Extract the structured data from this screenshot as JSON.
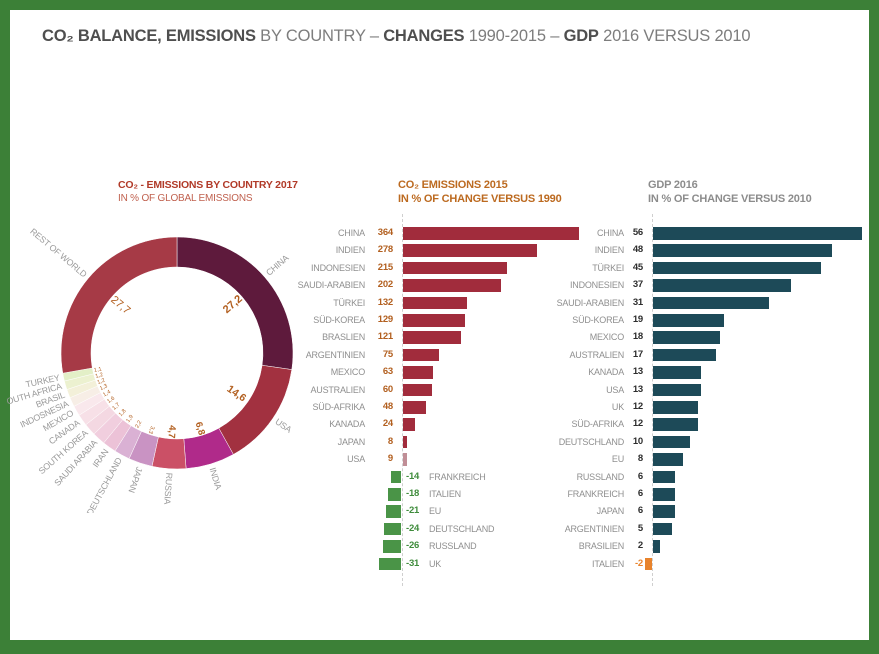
{
  "frame": {
    "border_color": "#3c8037",
    "background": "#ffffff"
  },
  "header": {
    "bold_color": "#4f4f4f",
    "regular_color": "#7d7d7d",
    "segments": [
      {
        "text": "CO₂ BALANCE, EMISSIONS",
        "bold": true
      },
      {
        "text": " BY COUNTRY – ",
        "bold": false
      },
      {
        "text": "CHANGES",
        "bold": true
      },
      {
        "text": " 1990-2015 – ",
        "bold": false
      },
      {
        "text": "GDP",
        "bold": true
      },
      {
        "text": " 2016 VERSUS 2010",
        "bold": false
      }
    ]
  },
  "chart_data": [
    {
      "type": "pie",
      "variant": "donut",
      "title": "CO₂ - EMISSIONS BY COUNTRY 2017",
      "subtitle": "IN % OF GLOBAL EMISSIONS",
      "title_color": "#b13a28",
      "subtitle_color": "#c0614f",
      "label_color": "#9a9a9a",
      "value_color": "#b25f1f",
      "segments": [
        {
          "label": "CHINA",
          "value": 27.2,
          "display": "27,2",
          "color": "#5e1a3c",
          "tier": "xl",
          "bold": true
        },
        {
          "label": "USA",
          "value": 14.6,
          "display": "14,6",
          "color": "#a23140",
          "tier": "lg",
          "bold": true
        },
        {
          "label": "INDIA",
          "value": 6.8,
          "display": "6,8",
          "color": "#b02a8a",
          "tier": "md",
          "bold": true
        },
        {
          "label": "RUSSIA",
          "value": 4.7,
          "display": "4,7",
          "color": "#cb5066",
          "tier": "md",
          "bold": true
        },
        {
          "label": "JAPAN",
          "value": 3.3,
          "display": "3,3",
          "color": "#c993c3",
          "tier": "sm",
          "bold": false
        },
        {
          "label": "DEUTSCHLAND",
          "value": 2.2,
          "display": "2,2",
          "color": "#dab1d4",
          "tier": "sm",
          "bold": false
        },
        {
          "label": "IRAN",
          "value": 1.9,
          "display": "1,9",
          "color": "#ecc2d7",
          "tier": "sm",
          "bold": false
        },
        {
          "label": "SAUDI ARABIA",
          "value": 1.8,
          "display": "1,8",
          "color": "#f1cede",
          "tier": "sm",
          "bold": false
        },
        {
          "label": "SOUTH KOREA",
          "value": 1.7,
          "display": "1,7",
          "color": "#f4d8e2",
          "tier": "sm",
          "bold": false
        },
        {
          "label": "CANADA",
          "value": 1.6,
          "display": "1,6",
          "color": "#f7e0e7",
          "tier": "sm",
          "bold": false
        },
        {
          "label": "MEXICO",
          "value": 1.4,
          "display": "1,4",
          "color": "#f9e8ec",
          "tier": "sm",
          "bold": false
        },
        {
          "label": "INDOSNESIA",
          "value": 1.3,
          "display": "1,3",
          "color": "#f7eee6",
          "tier": "sm",
          "bold": false
        },
        {
          "label": "BRASIL",
          "value": 1.2,
          "display": "1,2",
          "color": "#f3f0d9",
          "tier": "sm",
          "bold": false
        },
        {
          "label": "SOUTH AFRICA",
          "value": 1.2,
          "display": "1,2",
          "color": "#ecf1d0",
          "tier": "sm",
          "bold": false
        },
        {
          "label": "TURKEY",
          "value": 1.1,
          "display": "1,1",
          "color": "#e3efc7",
          "tier": "sm",
          "bold": false
        },
        {
          "label": "REST OF WORLD",
          "value": 27.7,
          "display": "27,7",
          "color": "#a63a46",
          "tier": "xl",
          "bold": false
        }
      ]
    },
    {
      "type": "bar",
      "orientation": "horizontal",
      "title": "CO₂ EMISSIONS 2015",
      "subtitle": "IN % OF CHANGE VERSUS 1990",
      "title_color": "#bc6a20",
      "label_color": "#8f8f8f",
      "value_color": "#b25f1f",
      "positive_color": "#a12c3c",
      "negative_color": "#4a9447",
      "negative_value_color": "#3f8c3c",
      "bars": [
        {
          "label": "CHINA",
          "value": 364
        },
        {
          "label": "INDIEN",
          "value": 278
        },
        {
          "label": "INDONESIEN",
          "value": 215
        },
        {
          "label": "SAUDI-ARABIEN",
          "value": 202
        },
        {
          "label": "TÜRKEI",
          "value": 132
        },
        {
          "label": "SÜD-KOREA",
          "value": 129
        },
        {
          "label": "BRASLIEN",
          "value": 121
        },
        {
          "label": "ARGENTINIEN",
          "value": 75
        },
        {
          "label": "MEXICO",
          "value": 63
        },
        {
          "label": "AUSTRALIEN",
          "value": 60
        },
        {
          "label": "SÜD-AFRIKA",
          "value": 48
        },
        {
          "label": "KANADA",
          "value": 24
        },
        {
          "label": "JAPAN",
          "value": 8
        },
        {
          "label": "USA",
          "value": 9,
          "color": "#c08e96"
        },
        {
          "label": "FRANKREICH",
          "value": -14
        },
        {
          "label": "ITALIEN",
          "value": -18
        },
        {
          "label": "EU",
          "value": -21
        },
        {
          "label": "DEUTSCHLAND",
          "value": -24
        },
        {
          "label": "RUSSLAND",
          "value": -26
        },
        {
          "label": "UK",
          "value": -31
        }
      ]
    },
    {
      "type": "bar",
      "orientation": "horizontal",
      "title": "GDP 2016",
      "subtitle": "IN % OF CHANGE VERSUS 2010",
      "title_color": "#8c8c8c",
      "label_color": "#8f8f8f",
      "value_color": "#2d2d2d",
      "positive_color": "#1d4a58",
      "negative_color": "#e8832c",
      "negative_value_color": "#e8832c",
      "bars": [
        {
          "label": "CHINA",
          "value": 56
        },
        {
          "label": "INDIEN",
          "value": 48
        },
        {
          "label": "TÜRKEI",
          "value": 45
        },
        {
          "label": "INDONESIEN",
          "value": 37
        },
        {
          "label": "SAUDI-ARABIEN",
          "value": 31
        },
        {
          "label": "SÜD-KOREA",
          "value": 19
        },
        {
          "label": "MEXICO",
          "value": 18
        },
        {
          "label": "AUSTRALIEN",
          "value": 17
        },
        {
          "label": "KANADA",
          "value": 13
        },
        {
          "label": "USA",
          "value": 13
        },
        {
          "label": "UK",
          "value": 12
        },
        {
          "label": "SÜD-AFRIKA",
          "value": 12
        },
        {
          "label": "DEUTSCHLAND",
          "value": 10
        },
        {
          "label": "EU",
          "value": 8
        },
        {
          "label": "RUSSLAND",
          "value": 6
        },
        {
          "label": "FRANKREICH",
          "value": 6
        },
        {
          "label": "JAPAN",
          "value": 6
        },
        {
          "label": "ARGENTINIEN",
          "value": 5
        },
        {
          "label": "BRASILIEN",
          "value": 2
        },
        {
          "label": "ITALIEN",
          "value": -2
        }
      ]
    }
  ]
}
